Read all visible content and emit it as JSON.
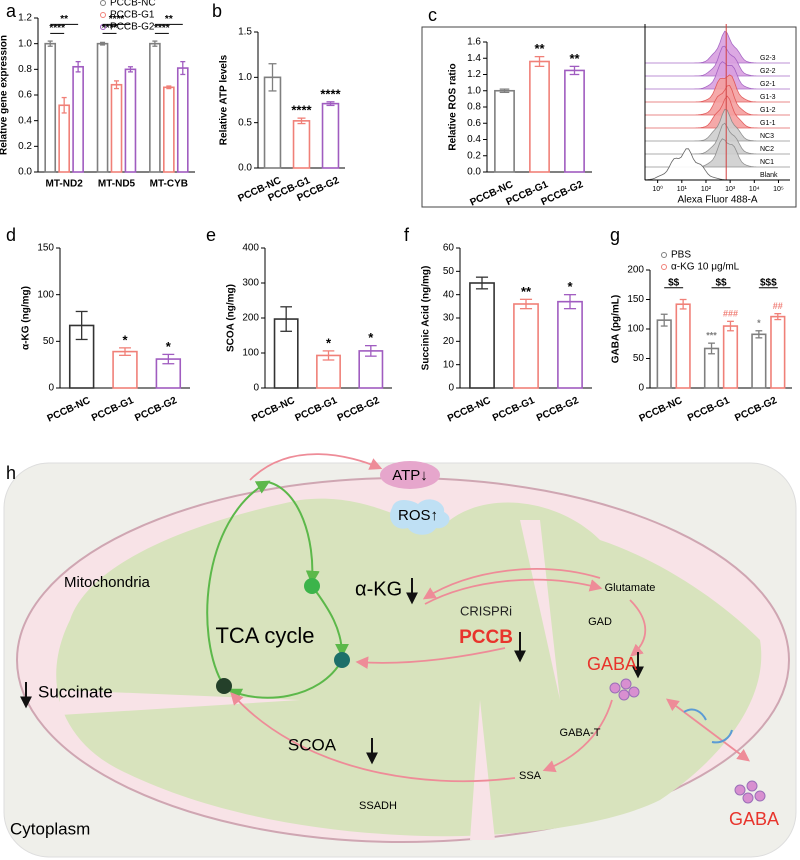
{
  "chart_data": [
    {
      "panel": "a",
      "type": "bar",
      "ylabel": "Relative gene expression",
      "categories": [
        "MT-ND2",
        "MT-ND5",
        "MT-CYB"
      ],
      "series": [
        {
          "name": "PCCB-NC",
          "color": "#7f7f7f",
          "values": [
            1.0,
            1.0,
            1.0
          ],
          "errors": [
            0.02,
            0.01,
            0.02
          ]
        },
        {
          "name": "PCCB-G1",
          "color": "#f08078",
          "values": [
            0.52,
            0.68,
            0.66
          ],
          "errors": [
            0.06,
            0.03,
            0.01
          ]
        },
        {
          "name": "PCCB-G2",
          "color": "#a05cc0",
          "values": [
            0.82,
            0.8,
            0.81
          ],
          "errors": [
            0.04,
            0.02,
            0.05
          ]
        }
      ],
      "ylim": [
        0,
        1.2
      ],
      "yticks": [
        {
          "value": 0,
          "label": "0.0"
        },
        {
          "value": 0.2,
          "label": "0.2"
        },
        {
          "value": 0.4,
          "label": "0.4"
        },
        {
          "value": 0.6,
          "label": "0.6"
        },
        {
          "value": 0.8,
          "label": "0.8"
        },
        {
          "value": 1,
          "label": "1.0"
        },
        {
          "value": 1.2,
          "label": "1.2"
        }
      ],
      "legend": "top-right",
      "annotations": [
        "****",
        "**",
        "****",
        "****",
        "****",
        "**"
      ]
    },
    {
      "panel": "b",
      "type": "bar",
      "ylabel": "Relative ATP levels",
      "categories": [
        "PCCB-NC",
        "PCCB-G1",
        "PCCB-G2"
      ],
      "values": [
        1.0,
        0.52,
        0.71
      ],
      "errors": [
        0.15,
        0.03,
        0.02
      ],
      "colors": [
        "#7f7f7f",
        "#f08078",
        "#a05cc0"
      ],
      "ylim": [
        0,
        1.5
      ],
      "yticks": [
        {
          "value": 0,
          "label": "0.0"
        },
        {
          "value": 0.5,
          "label": "0.5"
        },
        {
          "value": 1,
          "label": "1.0"
        },
        {
          "value": 1.5,
          "label": "1.5"
        }
      ],
      "annotations": [
        "****",
        "****"
      ]
    },
    {
      "panel": "c",
      "type": "bar",
      "ylabel": "Relative ROS ratio",
      "categories": [
        "PCCB-NC",
        "PCCB-G1",
        "PCCB-G2"
      ],
      "values": [
        1.0,
        1.36,
        1.25
      ],
      "errors": [
        0.02,
        0.06,
        0.05
      ],
      "colors": [
        "#7f7f7f",
        "#f08078",
        "#a05cc0"
      ],
      "ylim": [
        0,
        1.6
      ],
      "yticks": [
        {
          "value": 0,
          "label": "0.0"
        },
        {
          "value": 0.2,
          "label": "0.2"
        },
        {
          "value": 0.4,
          "label": "0.4"
        },
        {
          "value": 0.6,
          "label": "0.6"
        },
        {
          "value": 0.8,
          "label": "0.8"
        },
        {
          "value": 1,
          "label": "1.0"
        },
        {
          "value": 1.2,
          "label": "1.2"
        },
        {
          "value": 1.4,
          "label": "1.4"
        },
        {
          "value": 1.6,
          "label": "1.6"
        }
      ],
      "annotations": [
        "**",
        "**"
      ]
    },
    {
      "panel": "d",
      "type": "bar",
      "ylabel": "α-KG (ng/mg)",
      "categories": [
        "PCCB-NC",
        "PCCB-G1",
        "PCCB-G2"
      ],
      "values": [
        67,
        39,
        31
      ],
      "errors": [
        15,
        4,
        5
      ],
      "colors": [
        "#333333",
        "#f08078",
        "#a05cc0"
      ],
      "ylim": [
        0,
        150
      ],
      "yticks": [
        0,
        50,
        100,
        150
      ],
      "annotations": [
        "*",
        "*"
      ]
    },
    {
      "panel": "e",
      "type": "bar",
      "ylabel": "SCOA (ng/mg)",
      "categories": [
        "PCCB-NC",
        "PCCB-G1",
        "PCCB-G2"
      ],
      "values": [
        197,
        93,
        106
      ],
      "errors": [
        35,
        13,
        15
      ],
      "colors": [
        "#333333",
        "#f08078",
        "#a05cc0"
      ],
      "ylim": [
        0,
        400
      ],
      "yticks": [
        0,
        100,
        200,
        300,
        400
      ],
      "annotations": [
        "*",
        "*"
      ]
    },
    {
      "panel": "f",
      "type": "bar",
      "ylabel": "Succinic Acid (ng/mg)",
      "categories": [
        "PCCB-NC",
        "PCCB-G1",
        "PCCB-G2"
      ],
      "values": [
        45,
        36,
        37
      ],
      "errors": [
        2.5,
        2,
        3
      ],
      "colors": [
        "#333333",
        "#f08078",
        "#a05cc0"
      ],
      "ylim": [
        0,
        60
      ],
      "yticks": [
        0,
        10,
        20,
        30,
        40,
        50,
        60
      ],
      "annotations": [
        "**",
        "*"
      ]
    },
    {
      "panel": "g",
      "type": "bar",
      "ylabel": "GABA (pg/mL)",
      "categories": [
        "PCCB-NC",
        "PCCB-G1",
        "PCCB-G2"
      ],
      "series": [
        {
          "name": "PBS",
          "color": "#7f7f7f",
          "values": [
            115,
            67,
            91
          ],
          "errors": [
            10,
            9,
            6
          ]
        },
        {
          "name": "α-KG 10 μg/mL",
          "color": "#f08078",
          "values": [
            142,
            105,
            121
          ],
          "errors": [
            8,
            8,
            5
          ]
        }
      ],
      "ylim": [
        0,
        200
      ],
      "yticks": [
        0,
        50,
        100,
        150,
        200
      ],
      "legend": "top-left",
      "annotations": [
        "$$",
        "$$",
        "$$$",
        "***",
        "*",
        "###",
        "##"
      ]
    },
    {
      "type": "ridgeline",
      "xlabel": "Alexa Fluor 488-A",
      "categories": [
        "G2-3",
        "G2-2",
        "G2-1",
        "G1-3",
        "G1-2",
        "G1-1",
        "NC3",
        "NC2",
        "NC1",
        "Blank"
      ],
      "xscale": "log",
      "xlim": [
        0.3,
        300000
      ],
      "xticks": [
        {
          "value": 1,
          "label": "10⁰"
        },
        {
          "value": 10,
          "label": "10¹"
        },
        {
          "value": 100,
          "label": "10²"
        },
        {
          "value": 1000,
          "label": "10³"
        },
        {
          "value": 10000,
          "label": "10⁴"
        },
        {
          "value": 100000,
          "label": "10⁵"
        }
      ]
    }
  ],
  "diagram": {
    "panel": "h",
    "atp": "ATP↓",
    "ros": "ROS↑",
    "mitochondria": "Mitochondria",
    "akg": "α-KG",
    "tca": "TCA cycle",
    "crispri": "CRISPRi",
    "pccb": "PCCB",
    "succinate": "Succinate",
    "scoa": "SCOA",
    "glutamate": "Glutamate",
    "gad": "GAD",
    "gaba_in": "GABA",
    "gaba_t": "GABA-T",
    "ssa": "SSA",
    "ssadh": "SSADH",
    "gaba_out": "GABA",
    "cytoplasm": "Cytoplasm"
  }
}
